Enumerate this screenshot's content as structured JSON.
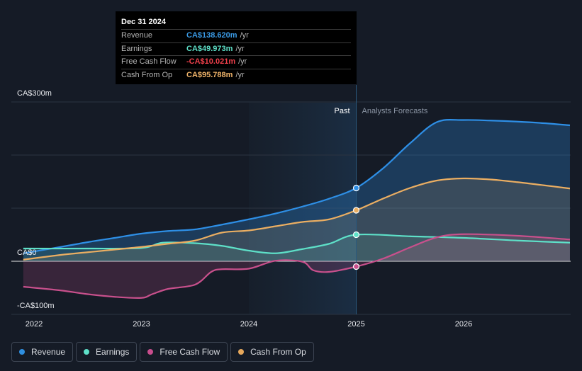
{
  "tooltip": {
    "date": "Dec 31 2024",
    "rows": [
      {
        "label": "Revenue",
        "value": "CA$138.620m",
        "unit": "/yr",
        "color": "#3b9be6"
      },
      {
        "label": "Earnings",
        "value": "CA$49.973m",
        "unit": "/yr",
        "color": "#5ee0c8"
      },
      {
        "label": "Free Cash Flow",
        "value": "-CA$10.021m",
        "unit": "/yr",
        "color": "#f0404b"
      },
      {
        "label": "Cash From Op",
        "value": "CA$95.788m",
        "unit": "/yr",
        "color": "#f0b46a"
      }
    ]
  },
  "legend": [
    {
      "label": "Revenue",
      "color": "#2f8fe0"
    },
    {
      "label": "Earnings",
      "color": "#5ee0c8"
    },
    {
      "label": "Free Cash Flow",
      "color": "#c84d8d"
    },
    {
      "label": "Cash From Op",
      "color": "#e6a85c"
    }
  ],
  "chart_data": {
    "type": "line",
    "x_domain": [
      2021.9,
      2026.99
    ],
    "ylim": [
      -100,
      300
    ],
    "y_tick_labels": [
      {
        "value": 300,
        "label": "CA$300m"
      },
      {
        "value": 0,
        "label": "CA$0"
      },
      {
        "value": -100,
        "label": "-CA$100m"
      }
    ],
    "x_ticks": [
      {
        "value": 2022,
        "label": "2022"
      },
      {
        "value": 2023,
        "label": "2023"
      },
      {
        "value": 2024,
        "label": "2024"
      },
      {
        "value": 2025,
        "label": "2025"
      },
      {
        "value": 2026,
        "label": "2026"
      }
    ],
    "past_label": "Past",
    "forecast_label": "Analysts Forecasts",
    "shade_start": 2024.0,
    "divider": 2025.0,
    "series": [
      {
        "name": "Revenue",
        "color": "#2e8fe6",
        "x": [
          2021.9,
          2022.25,
          2022.5,
          2022.75,
          2023.0,
          2023.25,
          2023.5,
          2023.75,
          2024.0,
          2024.25,
          2024.5,
          2024.75,
          2025.0,
          2025.25,
          2025.5,
          2025.75,
          2026.0,
          2026.25,
          2026.5,
          2026.75,
          2026.99
        ],
        "y": [
          15,
          27,
          36,
          44,
          52,
          57,
          60,
          69,
          79,
          90,
          103,
          118,
          138,
          175,
          222,
          262,
          266,
          265,
          263,
          260,
          256
        ]
      },
      {
        "name": "Earnings",
        "color": "#5ee0c8",
        "x": [
          2021.9,
          2022.5,
          2023.0,
          2023.2,
          2023.5,
          2023.75,
          2024.0,
          2024.25,
          2024.5,
          2024.75,
          2025.0,
          2025.5,
          2026.0,
          2026.5,
          2026.99
        ],
        "y": [
          24,
          24,
          25,
          35,
          34,
          29,
          20,
          15,
          23,
          33,
          50,
          47,
          44,
          39,
          35
        ]
      },
      {
        "name": "Free Cash Flow",
        "color": "#c8508c",
        "x": [
          2021.9,
          2022.25,
          2022.5,
          2022.75,
          2023.0,
          2023.1,
          2023.25,
          2023.5,
          2023.65,
          2023.75,
          2024.0,
          2024.25,
          2024.5,
          2024.6,
          2024.75,
          2025.0,
          2025.25,
          2025.5,
          2025.75,
          2026.0,
          2026.5,
          2026.99
        ],
        "y": [
          -48,
          -55,
          -62,
          -67,
          -69,
          -62,
          -52,
          -44,
          -20,
          -15,
          -14,
          1,
          -1,
          -17,
          -20,
          -10,
          5,
          26,
          45,
          51,
          48,
          41
        ]
      },
      {
        "name": "Cash From Op",
        "color": "#ebae62",
        "x": [
          2021.9,
          2022.25,
          2022.5,
          2022.75,
          2023.0,
          2023.25,
          2023.5,
          2023.75,
          2024.0,
          2024.25,
          2024.5,
          2024.75,
          2025.0,
          2025.25,
          2025.5,
          2025.75,
          2026.0,
          2026.25,
          2026.5,
          2026.75,
          2026.99
        ],
        "y": [
          3,
          12,
          17,
          22,
          27,
          33,
          39,
          54,
          58,
          66,
          74,
          79,
          96,
          118,
          138,
          152,
          156,
          154,
          149,
          143,
          137
        ]
      }
    ]
  }
}
